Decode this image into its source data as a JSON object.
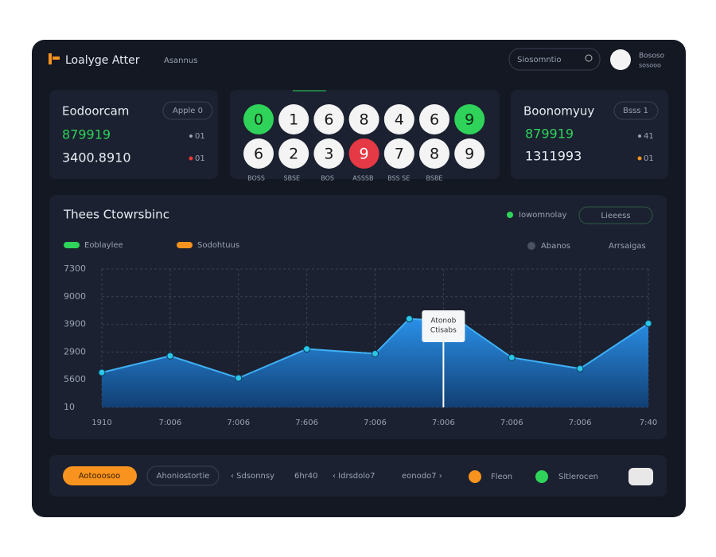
{
  "header": {
    "logo": "Loalyge Atter",
    "nav": "Asannus",
    "search": "Siosomntio",
    "user": [
      "Bososo",
      "sosooo"
    ]
  },
  "left_card": {
    "title": "Eodoorcam",
    "button": "Apple 0",
    "value_1": "879919",
    "badge_1": "01",
    "value_2": "3400.8910",
    "badge_2": "01"
  },
  "center_card": {
    "balls": [
      [
        {
          "n": "0",
          "color": "green"
        },
        {
          "n": "1",
          "color": "white"
        },
        {
          "n": "6",
          "color": "white"
        },
        {
          "n": "8",
          "color": "white"
        },
        {
          "n": "4",
          "color": "white"
        },
        {
          "n": "6",
          "color": "white"
        },
        {
          "n": "9",
          "color": "green"
        }
      ],
      [
        {
          "n": "6",
          "color": "white"
        },
        {
          "n": "2",
          "color": "white"
        },
        {
          "n": "3",
          "color": "white"
        },
        {
          "n": "9",
          "color": "red"
        },
        {
          "n": "7",
          "color": "white"
        },
        {
          "n": "8",
          "color": "white"
        },
        {
          "n": "9",
          "color": "white"
        }
      ]
    ],
    "labels": [
      "BOSS",
      "SBSE",
      "BOS",
      "ASSSB",
      "BSS SE",
      "BSBE"
    ]
  },
  "right_card": {
    "title": "Boonomyuy",
    "button": "Bsss 1",
    "value_1": "879919",
    "badge_1": "41",
    "value_2": "1311993",
    "badge_2": "01"
  },
  "chart_data": {
    "type": "area",
    "title": "Thees Ctowrsbinc",
    "toggle": {
      "label": "Iowomnolay",
      "button": "Lieeess"
    },
    "legend_extra": [
      "Abanos",
      "Arrsaigas"
    ],
    "annotation": [
      "Atonob",
      "Ctisabs"
    ],
    "series": [
      {
        "name": "Eoblaylee",
        "color": "#2fd35a",
        "x": [
          0,
          1,
          2,
          3,
          4,
          4.5,
          5.25,
          6,
          7,
          8
        ],
        "values": [
          1.26,
          1.86,
          1.06,
          2.11,
          1.94,
          3.2,
          3.09,
          1.8,
          1.4,
          3.03
        ]
      },
      {
        "name": "Sodohtuus",
        "color": "#f7931e"
      }
    ],
    "annotation_x": 5,
    "xlim": [
      0,
      8
    ],
    "xticks": [
      {
        "value": 0,
        "label": "1910"
      },
      {
        "value": 1,
        "label": "7:006"
      },
      {
        "value": 2,
        "label": "7:006"
      },
      {
        "value": 3,
        "label": "7:606"
      },
      {
        "value": 4,
        "label": "7:006"
      },
      {
        "value": 5,
        "label": "7:006"
      },
      {
        "value": 6,
        "label": "7:006"
      },
      {
        "value": 7,
        "label": "7:006"
      },
      {
        "value": 8,
        "label": "7:40"
      }
    ],
    "ylim": [
      0,
      5
    ],
    "yticks": [
      {
        "value": 0,
        "label": "10"
      },
      {
        "value": 1,
        "label": "5600"
      },
      {
        "value": 2,
        "label": "2900"
      },
      {
        "value": 3,
        "label": "3900"
      },
      {
        "value": 4,
        "label": "9000"
      },
      {
        "value": 5,
        "label": "7300"
      }
    ],
    "grid": true
  },
  "footer": {
    "primary": "Aotooosoo",
    "secondary": "Ahoniostortie",
    "items": [
      "‹ Sdsonnsy",
      "6hr40",
      "‹ Idrsdolo7",
      "eonodo7 ›"
    ],
    "status_1": "Fleon",
    "status_2": "Sltlerocen"
  }
}
